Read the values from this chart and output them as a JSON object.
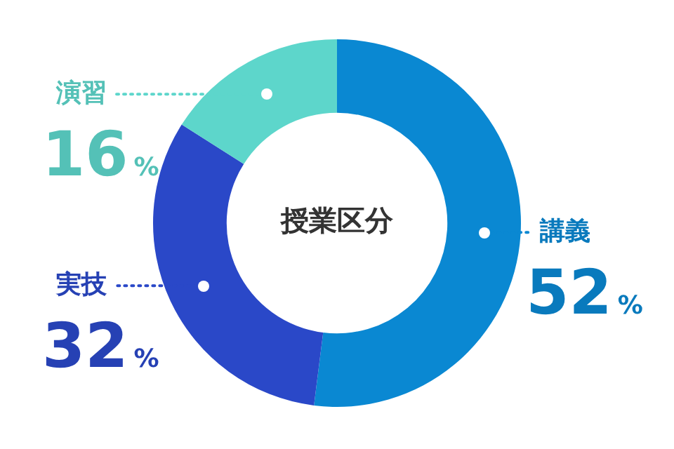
{
  "chart_data": {
    "type": "donut",
    "title": "授業区分",
    "categories": [
      "講義",
      "実技",
      "演習"
    ],
    "values": [
      52,
      32,
      16
    ],
    "colors": [
      "#0a88d2",
      "#2a48c8",
      "#5dd6cb"
    ],
    "value_labels": [
      "52%",
      "32%",
      "16%"
    ],
    "legend": false
  }
}
